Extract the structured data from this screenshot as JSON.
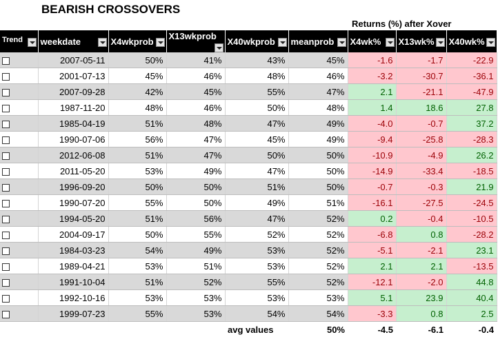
{
  "title": "BEARISH CROSSOVERS",
  "returns_header": "Returns (%) after Xover",
  "columns": [
    "Trend",
    "weekdate",
    "X4wkprob",
    "X13wkprob",
    "X40wkprob",
    "meanprob",
    "X4wk%",
    "X13wk%",
    "X40wk%"
  ],
  "rows": [
    {
      "weekdate": "2007-05-11",
      "x4": "50%",
      "x13": "41%",
      "x40": "43%",
      "mean": "45%",
      "r4": "-1.6",
      "r13": "-1.7",
      "r40": "-22.9"
    },
    {
      "weekdate": "2001-07-13",
      "x4": "45%",
      "x13": "46%",
      "x40": "48%",
      "mean": "46%",
      "r4": "-3.2",
      "r13": "-30.7",
      "r40": "-36.1"
    },
    {
      "weekdate": "2007-09-28",
      "x4": "42%",
      "x13": "45%",
      "x40": "55%",
      "mean": "47%",
      "r4": "2.1",
      "r13": "-21.1",
      "r40": "-47.9"
    },
    {
      "weekdate": "1987-11-20",
      "x4": "48%",
      "x13": "46%",
      "x40": "50%",
      "mean": "48%",
      "r4": "1.4",
      "r13": "18.6",
      "r40": "27.8"
    },
    {
      "weekdate": "1985-04-19",
      "x4": "51%",
      "x13": "48%",
      "x40": "47%",
      "mean": "49%",
      "r4": "-4.0",
      "r13": "-0.7",
      "r40": "37.2"
    },
    {
      "weekdate": "1990-07-06",
      "x4": "56%",
      "x13": "47%",
      "x40": "45%",
      "mean": "49%",
      "r4": "-9.4",
      "r13": "-25.8",
      "r40": "-28.3"
    },
    {
      "weekdate": "2012-06-08",
      "x4": "51%",
      "x13": "47%",
      "x40": "50%",
      "mean": "50%",
      "r4": "-10.9",
      "r13": "-4.9",
      "r40": "26.2"
    },
    {
      "weekdate": "2011-05-20",
      "x4": "53%",
      "x13": "49%",
      "x40": "47%",
      "mean": "50%",
      "r4": "-14.9",
      "r13": "-33.4",
      "r40": "-18.5"
    },
    {
      "weekdate": "1996-09-20",
      "x4": "50%",
      "x13": "50%",
      "x40": "51%",
      "mean": "50%",
      "r4": "-0.7",
      "r13": "-0.3",
      "r40": "21.9"
    },
    {
      "weekdate": "1990-07-20",
      "x4": "55%",
      "x13": "50%",
      "x40": "49%",
      "mean": "51%",
      "r4": "-16.1",
      "r13": "-27.5",
      "r40": "-24.5"
    },
    {
      "weekdate": "1994-05-20",
      "x4": "51%",
      "x13": "56%",
      "x40": "47%",
      "mean": "52%",
      "r4": "0.2",
      "r13": "-0.4",
      "r40": "-10.5"
    },
    {
      "weekdate": "2004-09-17",
      "x4": "50%",
      "x13": "55%",
      "x40": "52%",
      "mean": "52%",
      "r4": "-6.8",
      "r13": "0.8",
      "r40": "-28.2"
    },
    {
      "weekdate": "1984-03-23",
      "x4": "54%",
      "x13": "49%",
      "x40": "53%",
      "mean": "52%",
      "r4": "-5.1",
      "r13": "-2.1",
      "r40": "23.1"
    },
    {
      "weekdate": "1989-04-21",
      "x4": "53%",
      "x13": "51%",
      "x40": "53%",
      "mean": "52%",
      "r4": "2.1",
      "r13": "2.1",
      "r40": "-13.5"
    },
    {
      "weekdate": "1991-10-04",
      "x4": "51%",
      "x13": "52%",
      "x40": "55%",
      "mean": "52%",
      "r4": "-12.1",
      "r13": "-2.0",
      "r40": "44.8"
    },
    {
      "weekdate": "1992-10-16",
      "x4": "53%",
      "x13": "53%",
      "x40": "53%",
      "mean": "53%",
      "r4": "5.1",
      "r13": "23.9",
      "r40": "40.4"
    },
    {
      "weekdate": "1999-07-23",
      "x4": "55%",
      "x13": "53%",
      "x40": "54%",
      "mean": "54%",
      "r4": "-3.3",
      "r13": "0.8",
      "r40": "2.5"
    }
  ],
  "avg": {
    "label": "avg values",
    "mean": "50%",
    "r4": "-4.5",
    "r13": "-6.1",
    "r40": "-0.4"
  },
  "colors": {
    "header_bg": "#000000",
    "neg_fill": "#ffc7ce",
    "neg_text": "#9c0006",
    "pos_fill": "#c6efce",
    "pos_text": "#006100",
    "stripe": "#d9d9d9"
  }
}
